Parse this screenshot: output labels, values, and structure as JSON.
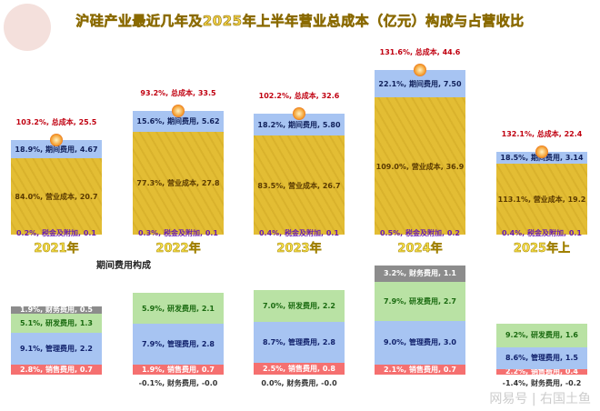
{
  "title": "沪硅产业最近几年及2025年上半年营业总成本（亿元）构成与占营收比",
  "subtitle": "期间费用构成",
  "watermark": "网易号 | 右国土鱼",
  "colors": {
    "cost": "#e3bd34",
    "period": "#a7c4f2",
    "tax": "#8a3fd0",
    "rd": "#b9e2a4",
    "admin": "#a7c4f2",
    "sales": "#f57070",
    "finance": "#8c8c8c"
  },
  "chart_data": [
    {
      "type": "bar",
      "stacked": true,
      "categories": [
        "2021年",
        "2022年",
        "2023年",
        "2024年",
        "2025年上"
      ],
      "series": [
        {
          "name": "税金及附加",
          "values": [
            0.1,
            0.1,
            0.1,
            0.2,
            0.1
          ],
          "pct": [
            "0.2%",
            "0.3%",
            "0.4%",
            "0.5%",
            "0.4%"
          ]
        },
        {
          "name": "营业成本",
          "values": [
            20.7,
            27.8,
            26.7,
            36.9,
            19.2
          ],
          "pct": [
            "84.0%",
            "77.3%",
            "83.5%",
            "109.0%",
            "113.1%"
          ]
        },
        {
          "name": "期间费用",
          "values": [
            4.67,
            5.62,
            5.8,
            7.5,
            3.14
          ],
          "pct": [
            "18.9%",
            "15.6%",
            "18.2%",
            "22.1%",
            "18.5%"
          ]
        }
      ],
      "total": {
        "name": "总成本",
        "values": [
          25.5,
          33.5,
          32.6,
          44.6,
          22.4
        ],
        "pct": [
          "103.2%",
          "93.2%",
          "102.2%",
          "131.6%",
          "132.1%"
        ]
      },
      "labels": {
        "tax": [
          "0.2%, 税金及附加, 0.1",
          "0.3%, 税金及附加, 0.1",
          "0.4%, 税金及附加, 0.1",
          "0.5%, 税金及附加, 0.2",
          "0.4%, 税金及附加, 0.1"
        ],
        "cost": [
          "84.0%, 营业成本, 20.7",
          "77.3%, 营业成本, 27.8",
          "83.5%, 营业成本, 26.7",
          "109.0%, 营业成本, 36.9",
          "113.1%, 营业成本, 19.2"
        ],
        "period": [
          "18.9%, 期间费用, 4.67",
          "15.6%, 期间费用, 5.62",
          "18.2%, 期间费用, 5.80",
          "22.1%, 期间费用, 7.50",
          "18.5%, 期间费用, 3.14"
        ],
        "total": [
          "103.2%, 总成本, 25.5",
          "93.2%, 总成本, 33.5",
          "102.2%, 总成本, 32.6",
          "131.6%, 总成本, 44.6",
          "132.1%, 总成本, 22.4"
        ]
      }
    },
    {
      "type": "bar",
      "stacked": true,
      "title": "期间费用构成",
      "categories": [
        "2021年",
        "2022年",
        "2023年",
        "2024年",
        "2025年上"
      ],
      "series": [
        {
          "name": "销售费用",
          "key": "sales",
          "values": [
            0.7,
            0.7,
            0.8,
            0.7,
            0.4
          ],
          "labels": [
            "2.8%, 销售费用, 0.7",
            "1.9%, 销售费用, 0.7",
            "2.5%, 销售费用, 0.8",
            "2.1%, 销售费用, 0.7",
            "2.2%, 销售费用, 0.4"
          ]
        },
        {
          "name": "管理费用",
          "key": "admin",
          "values": [
            2.2,
            2.8,
            2.8,
            3.0,
            1.5
          ],
          "labels": [
            "9.1%, 管理费用, 2.2",
            "7.9%, 管理费用, 2.8",
            "8.7%, 管理费用, 2.8",
            "9.0%, 管理费用, 3.0",
            "8.6%, 管理费用, 1.5"
          ]
        },
        {
          "name": "研发费用",
          "key": "rd",
          "values": [
            1.3,
            2.1,
            2.2,
            2.7,
            1.6
          ],
          "labels": [
            "5.1%, 研发费用, 1.3",
            "5.9%, 研发费用, 2.1",
            "7.0%, 研发费用, 2.2",
            "7.9%, 研发费用, 2.7",
            "9.2%, 研发费用, 1.6"
          ]
        },
        {
          "name": "财务费用",
          "key": "finance",
          "values": [
            0.5,
            -0.0,
            -0.0,
            1.1,
            -0.2
          ],
          "labels": [
            "1.9%, 财务费用, 0.5",
            "-0.1%, 财务费用, -0.0",
            "0.0%, 财务费用, -0.0",
            "3.2%, 财务费用, 1.1",
            "-1.4%, 财务费用, -0.2"
          ]
        }
      ]
    }
  ]
}
